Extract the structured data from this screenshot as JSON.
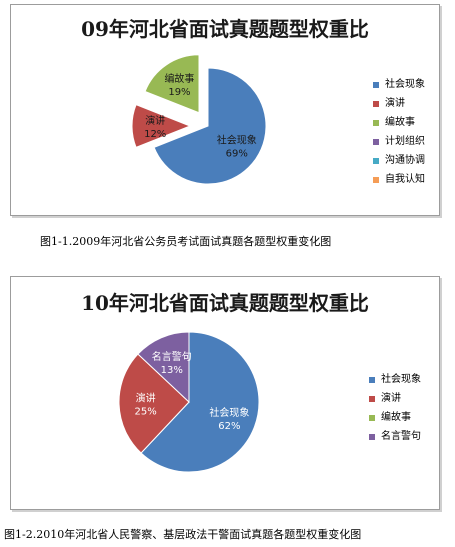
{
  "chart_data": [
    {
      "type": "pie",
      "title": "09年河北省面试真题题型权重比",
      "categories": [
        "社会现象",
        "演讲",
        "编故事",
        "计划组织",
        "沟通协调",
        "自我认知"
      ],
      "values": [
        69,
        12,
        19,
        0,
        0,
        0
      ],
      "labels": [
        "69%",
        "12%",
        "19%"
      ],
      "colors": [
        "#4a7ebb",
        "#be4b48",
        "#98b954",
        "#7d60a0",
        "#46aac5",
        "#f59d56"
      ],
      "exploded": true,
      "legend": "right",
      "caption": "图1-1.2009年河北省公务员考试面试真题各题型权重变化图"
    },
    {
      "type": "pie",
      "title": "10年河北省面试真题题型权重比",
      "categories": [
        "社会现象",
        "演讲",
        "编故事",
        "名言警句"
      ],
      "values": [
        62,
        25,
        0,
        13
      ],
      "labels": [
        "62%",
        "25%",
        "",
        "13%"
      ],
      "colors": [
        "#4a7ebb",
        "#be4b48",
        "#98b954",
        "#7d60a0"
      ],
      "exploded": false,
      "legend": "right",
      "caption": "图1-2.2010年河北省人民警察、基层政法干警面试真题各题型权重变化图"
    }
  ]
}
